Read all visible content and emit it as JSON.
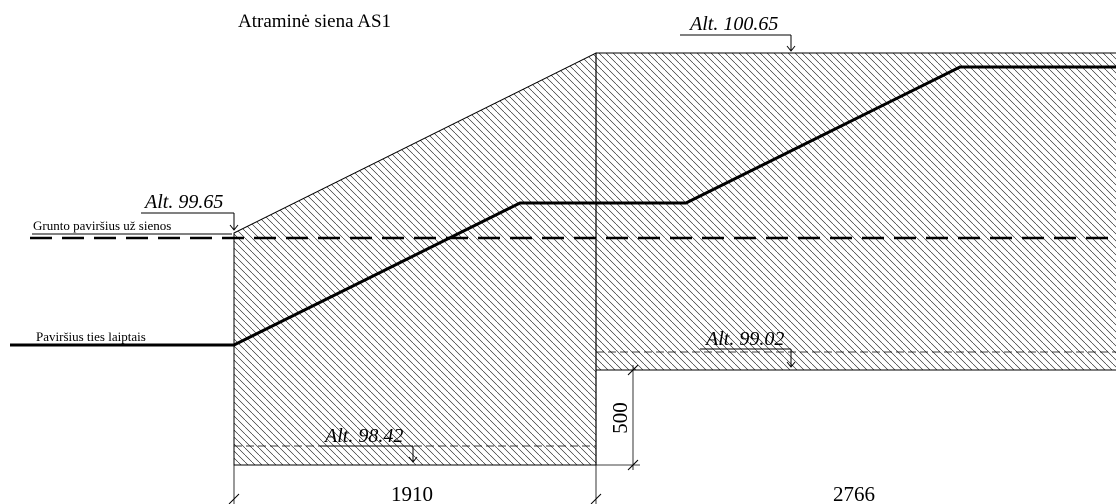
{
  "title": "Atraminė siena AS1",
  "elevations": [
    {
      "id": "top",
      "label": "Alt. 100.65"
    },
    {
      "id": "left",
      "label": "Alt. 99.65"
    },
    {
      "id": "step",
      "label": "Alt. 99.02"
    },
    {
      "id": "bottom",
      "label": "Alt. 98.42"
    }
  ],
  "annotations": {
    "ground_behind_wall": "Grunto paviršius už sienos",
    "surface_at_stairs": "Paviršius ties laiptais"
  },
  "dimensions": {
    "width_left": "1910",
    "width_right": "2766",
    "height_step": "500"
  }
}
